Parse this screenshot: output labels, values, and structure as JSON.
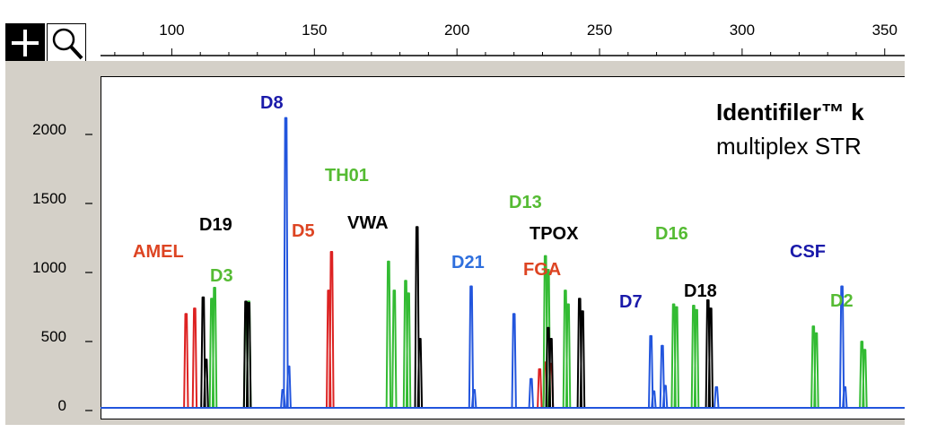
{
  "toolbar": {
    "zoom_in_icon": "plus-icon",
    "magnify_icon": "magnifier-icon"
  },
  "chart_data": {
    "type": "line",
    "title": "Identifiler™ k",
    "subtitle": "multiplex STR",
    "x_ticks": [
      "100",
      "150",
      "200",
      "250",
      "300",
      "350"
    ],
    "y_ticks": [
      "2000",
      "1500",
      "1000",
      "500",
      "0"
    ],
    "xlim": [
      75,
      357
    ],
    "ylim": [
      0,
      2300
    ],
    "grid": false,
    "colors": {
      "blue": "#2255dd",
      "green": "#33bb33",
      "black": "#000000",
      "red": "#dd2222"
    },
    "labels": [
      {
        "text": "D8",
        "color": "#1a1aaa"
      },
      {
        "text": "TH01",
        "color": "#55bb33"
      },
      {
        "text": "D19",
        "color": "#000000"
      },
      {
        "text": "VWA",
        "color": "#000000"
      },
      {
        "text": "D5",
        "color": "#dd4422"
      },
      {
        "text": "AMEL",
        "color": "#dd4422"
      },
      {
        "text": "D3",
        "color": "#55bb33"
      },
      {
        "text": "D13",
        "color": "#55bb33"
      },
      {
        "text": "TPOX",
        "color": "#000000"
      },
      {
        "text": "D21",
        "color": "#2f6fdd"
      },
      {
        "text": "FGA",
        "color": "#dd4422"
      },
      {
        "text": "D16",
        "color": "#55bb33"
      },
      {
        "text": "CSF",
        "color": "#1a1aaa"
      },
      {
        "text": "D18",
        "color": "#000000"
      },
      {
        "text": "D7",
        "color": "#1a1aaa"
      },
      {
        "text": "D2",
        "color": "#55bb33"
      }
    ],
    "series": [
      {
        "color": "#dd2222",
        "peaks": [
          [
            105,
            680
          ],
          [
            108,
            720
          ],
          [
            155,
            850
          ],
          [
            156,
            1130
          ],
          [
            229,
            280
          ],
          [
            231,
            330
          ],
          [
            233,
            320
          ]
        ]
      },
      {
        "color": "#33bb33",
        "peaks": [
          [
            114,
            790
          ],
          [
            115,
            870
          ],
          [
            126,
            690
          ],
          [
            127,
            770
          ],
          [
            176,
            1060
          ],
          [
            178,
            850
          ],
          [
            182,
            920
          ],
          [
            183,
            830
          ],
          [
            231,
            1100
          ],
          [
            232,
            1000
          ],
          [
            238,
            850
          ],
          [
            239,
            750
          ],
          [
            276,
            750
          ],
          [
            277,
            730
          ],
          [
            283,
            740
          ],
          [
            284,
            710
          ],
          [
            325,
            590
          ],
          [
            326,
            540
          ],
          [
            342,
            480
          ],
          [
            343,
            420
          ]
        ]
      },
      {
        "color": "#000000",
        "peaks": [
          [
            111,
            800
          ],
          [
            112,
            350
          ],
          [
            126,
            770
          ],
          [
            127,
            760
          ],
          [
            186,
            1310
          ],
          [
            187,
            500
          ],
          [
            232,
            580
          ],
          [
            233,
            500
          ],
          [
            243,
            790
          ],
          [
            244,
            700
          ],
          [
            288,
            780
          ],
          [
            289,
            720
          ]
        ]
      },
      {
        "color": "#2255dd",
        "peaks": [
          [
            139,
            130
          ],
          [
            140,
            2100
          ],
          [
            141,
            300
          ],
          [
            205,
            880
          ],
          [
            206,
            130
          ],
          [
            220,
            680
          ],
          [
            226,
            210
          ],
          [
            268,
            520
          ],
          [
            269,
            120
          ],
          [
            272,
            450
          ],
          [
            273,
            160
          ],
          [
            291,
            150
          ],
          [
            335,
            880
          ],
          [
            336,
            150
          ]
        ]
      }
    ]
  }
}
